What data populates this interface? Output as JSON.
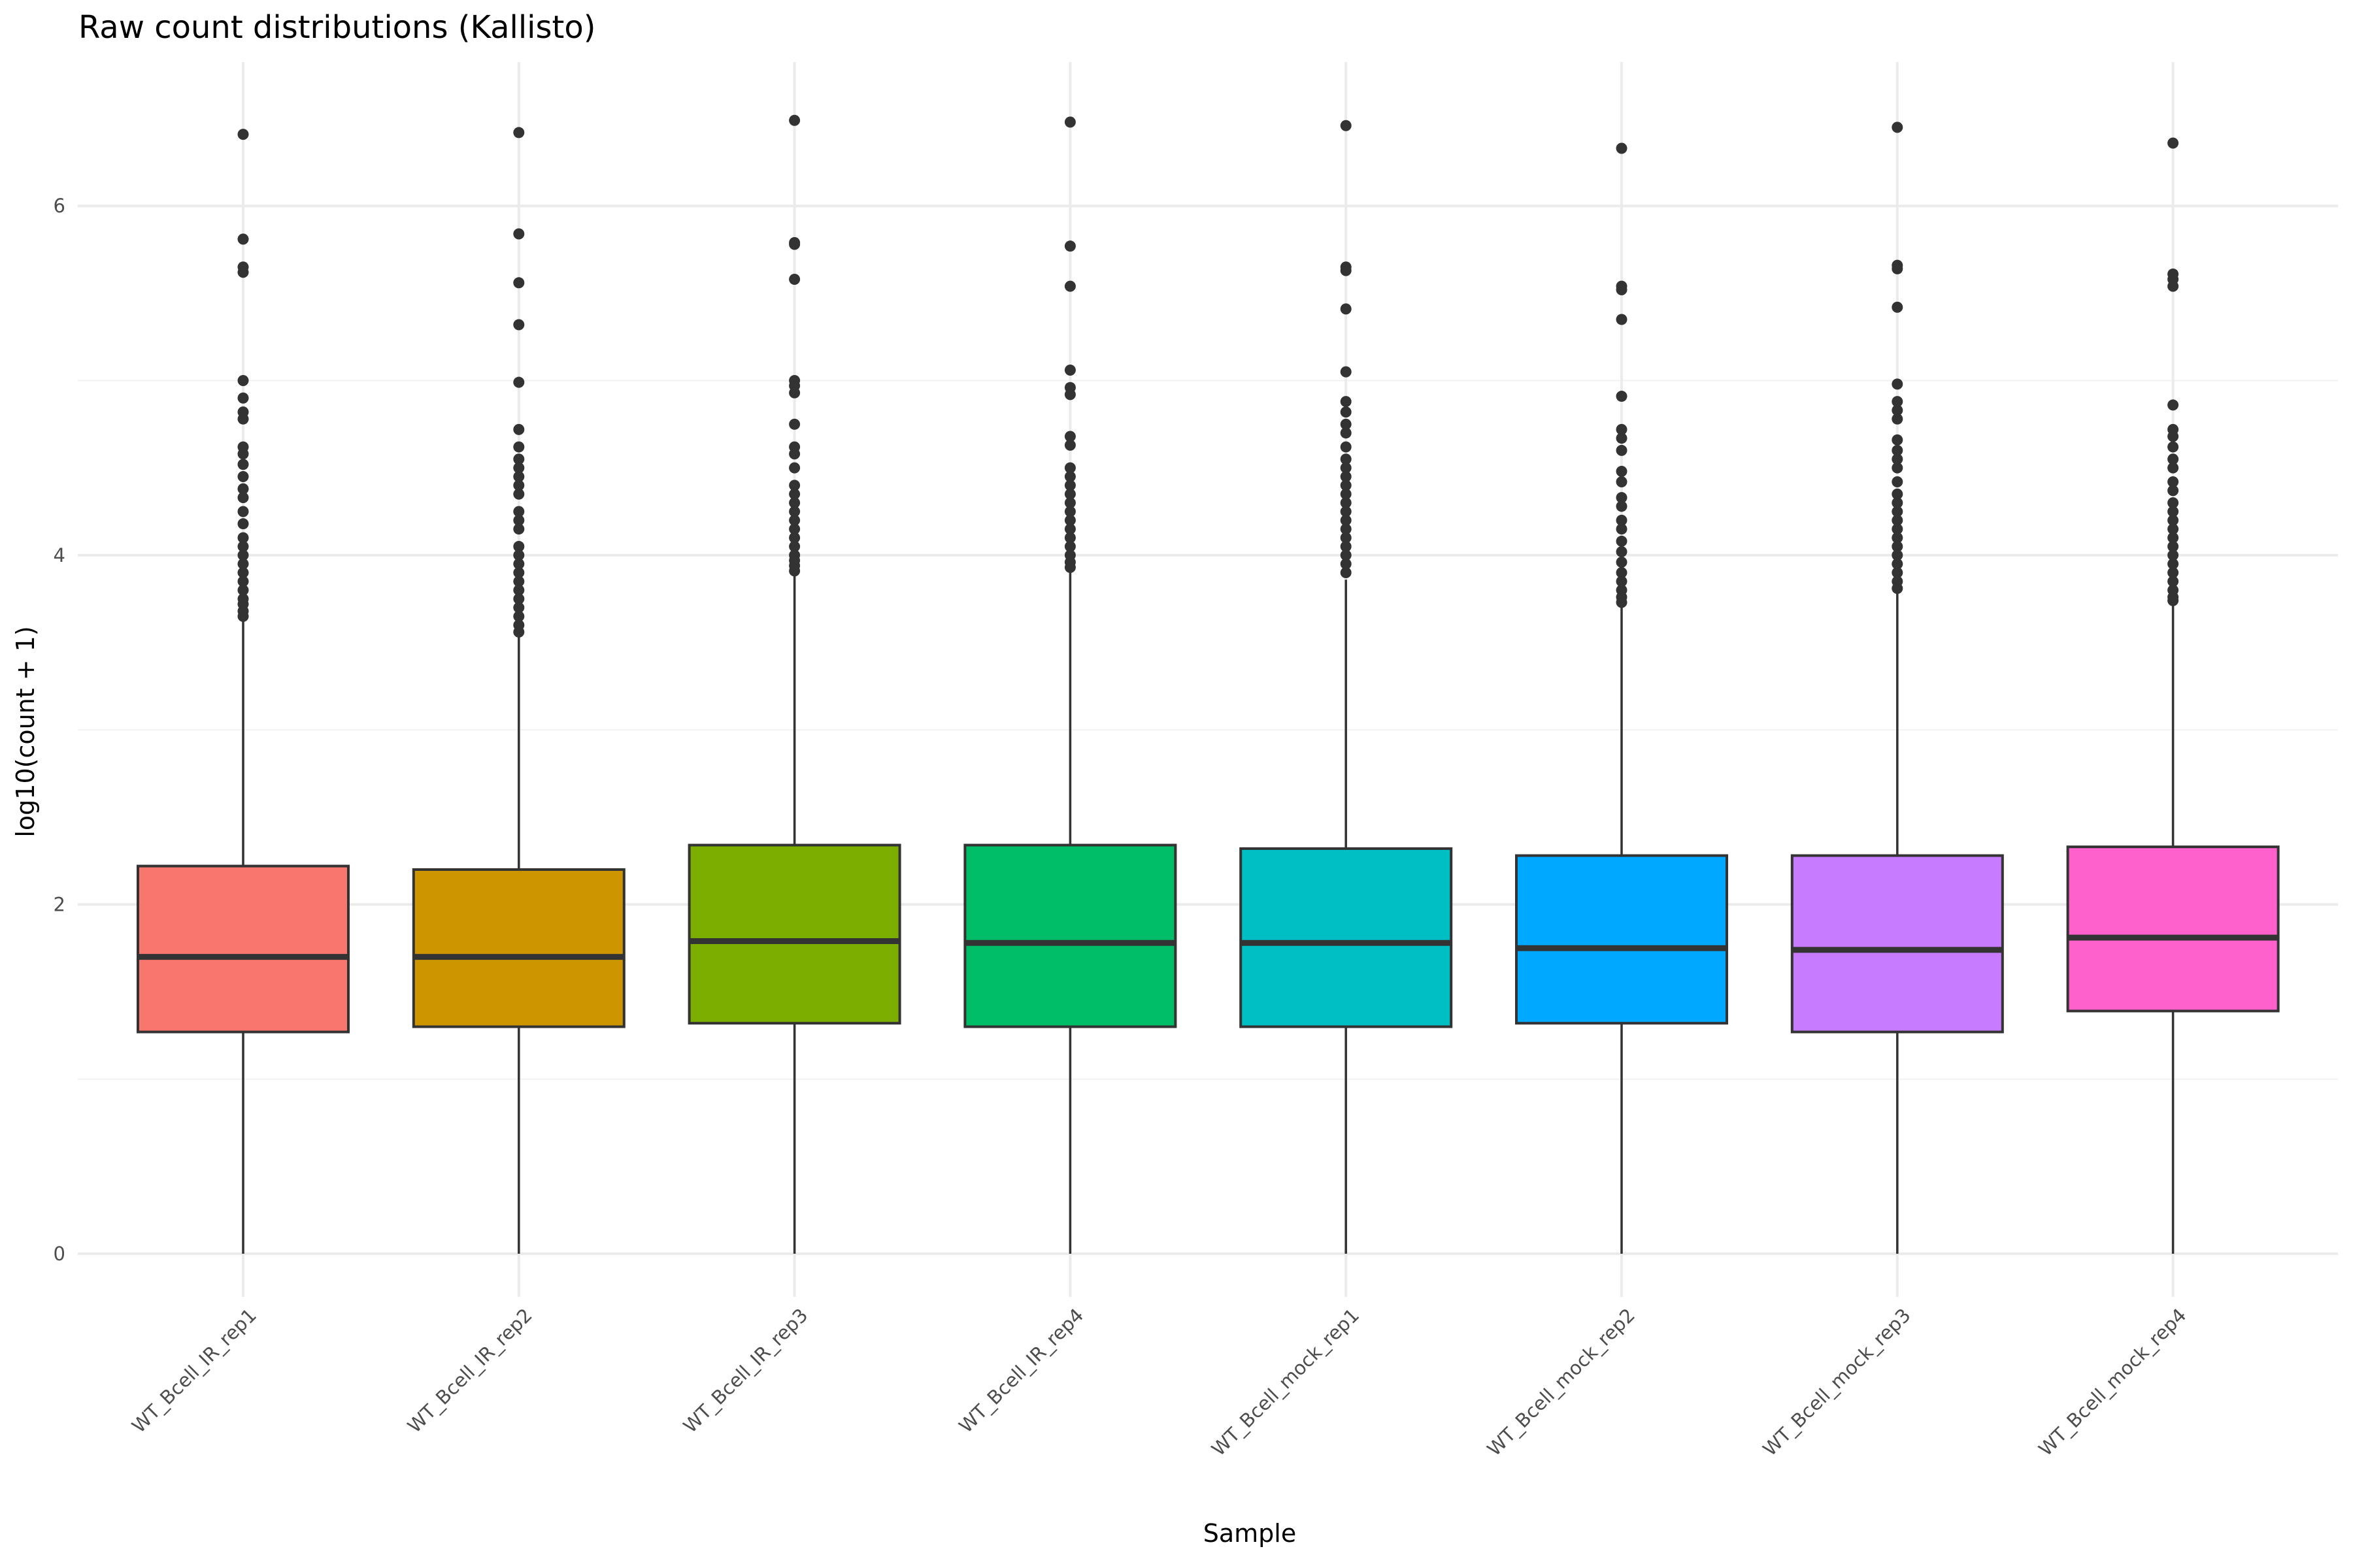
{
  "chart_data": {
    "type": "boxplot",
    "title": "Raw count distributions (Kallisto)",
    "xlabel": "Sample",
    "ylabel": "log10(count + 1)",
    "ylim": [
      -0.3,
      6.8
    ],
    "yticks": [
      0,
      2,
      4,
      6
    ],
    "grid": true,
    "legend": "none",
    "categories": [
      "WT_Bcell_IR_rep1",
      "WT_Bcell_IR_rep2",
      "WT_Bcell_IR_rep3",
      "WT_Bcell_IR_rep4",
      "WT_Bcell_mock_rep1",
      "WT_Bcell_mock_rep2",
      "WT_Bcell_mock_rep3",
      "WT_Bcell_mock_rep4"
    ],
    "colors": [
      "#F8766D",
      "#CD9600",
      "#7CAE00",
      "#00BE67",
      "#00BFC4",
      "#00A9FF",
      "#C77CFF",
      "#FF61CC"
    ],
    "boxes": [
      {
        "min": 0,
        "q1": 1.27,
        "median": 1.7,
        "q3": 2.22,
        "max": 3.62,
        "outliers": [
          6.41,
          5.81,
          5.65,
          5.62,
          5.0,
          4.9,
          4.82,
          4.78,
          4.62,
          4.58,
          4.52,
          4.45,
          4.38,
          4.33,
          4.25,
          4.18,
          4.1,
          4.05,
          4.0,
          3.95,
          3.9,
          3.85,
          3.8,
          3.75,
          3.72,
          3.68,
          3.65
        ]
      },
      {
        "min": 0,
        "q1": 1.3,
        "median": 1.7,
        "q3": 2.2,
        "max": 3.53,
        "outliers": [
          6.42,
          5.84,
          5.56,
          5.32,
          4.99,
          4.72,
          4.62,
          4.55,
          4.5,
          4.45,
          4.4,
          4.35,
          4.25,
          4.2,
          4.15,
          4.05,
          4.0,
          3.95,
          3.9,
          3.85,
          3.8,
          3.75,
          3.7,
          3.65,
          3.6,
          3.56
        ]
      },
      {
        "min": 0,
        "q1": 1.32,
        "median": 1.79,
        "q3": 2.34,
        "max": 3.88,
        "outliers": [
          6.49,
          5.79,
          5.78,
          5.58,
          5.0,
          4.97,
          4.93,
          4.75,
          4.62,
          4.58,
          4.5,
          4.4,
          4.35,
          4.3,
          4.25,
          4.2,
          4.15,
          4.1,
          4.05,
          4.0,
          3.97,
          3.94,
          3.91
        ]
      },
      {
        "min": 0,
        "q1": 1.3,
        "median": 1.78,
        "q3": 2.34,
        "max": 3.9,
        "outliers": [
          6.48,
          5.77,
          5.54,
          5.06,
          4.96,
          4.92,
          4.68,
          4.63,
          4.5,
          4.45,
          4.4,
          4.35,
          4.3,
          4.25,
          4.2,
          4.15,
          4.1,
          4.05,
          4.0,
          3.96,
          3.93
        ]
      },
      {
        "min": 0,
        "q1": 1.3,
        "median": 1.78,
        "q3": 2.32,
        "max": 3.86,
        "outliers": [
          6.46,
          5.65,
          5.63,
          5.41,
          5.05,
          4.88,
          4.82,
          4.75,
          4.7,
          4.62,
          4.55,
          4.5,
          4.45,
          4.4,
          4.35,
          4.3,
          4.25,
          4.2,
          4.15,
          4.1,
          4.05,
          4.0,
          3.95,
          3.9
        ]
      },
      {
        "min": 0,
        "q1": 1.32,
        "median": 1.75,
        "q3": 2.28,
        "max": 3.7,
        "outliers": [
          6.33,
          5.54,
          5.52,
          5.35,
          4.91,
          4.72,
          4.67,
          4.6,
          4.48,
          4.42,
          4.33,
          4.28,
          4.2,
          4.15,
          4.08,
          4.02,
          3.96,
          3.9,
          3.85,
          3.8,
          3.76,
          3.73
        ]
      },
      {
        "min": 0,
        "q1": 1.27,
        "median": 1.74,
        "q3": 2.28,
        "max": 3.78,
        "outliers": [
          6.45,
          5.66,
          5.64,
          5.42,
          4.98,
          4.88,
          4.83,
          4.78,
          4.66,
          4.6,
          4.55,
          4.5,
          4.42,
          4.35,
          4.3,
          4.25,
          4.2,
          4.15,
          4.1,
          4.05,
          4.0,
          3.95,
          3.9,
          3.85,
          3.81
        ]
      },
      {
        "min": 0,
        "q1": 1.39,
        "median": 1.81,
        "q3": 2.33,
        "max": 3.72,
        "outliers": [
          6.36,
          5.61,
          5.58,
          5.54,
          4.86,
          4.72,
          4.68,
          4.62,
          4.55,
          4.5,
          4.42,
          4.37,
          4.3,
          4.25,
          4.2,
          4.15,
          4.1,
          4.05,
          4.0,
          3.95,
          3.9,
          3.85,
          3.8,
          3.76,
          3.74
        ]
      }
    ]
  }
}
